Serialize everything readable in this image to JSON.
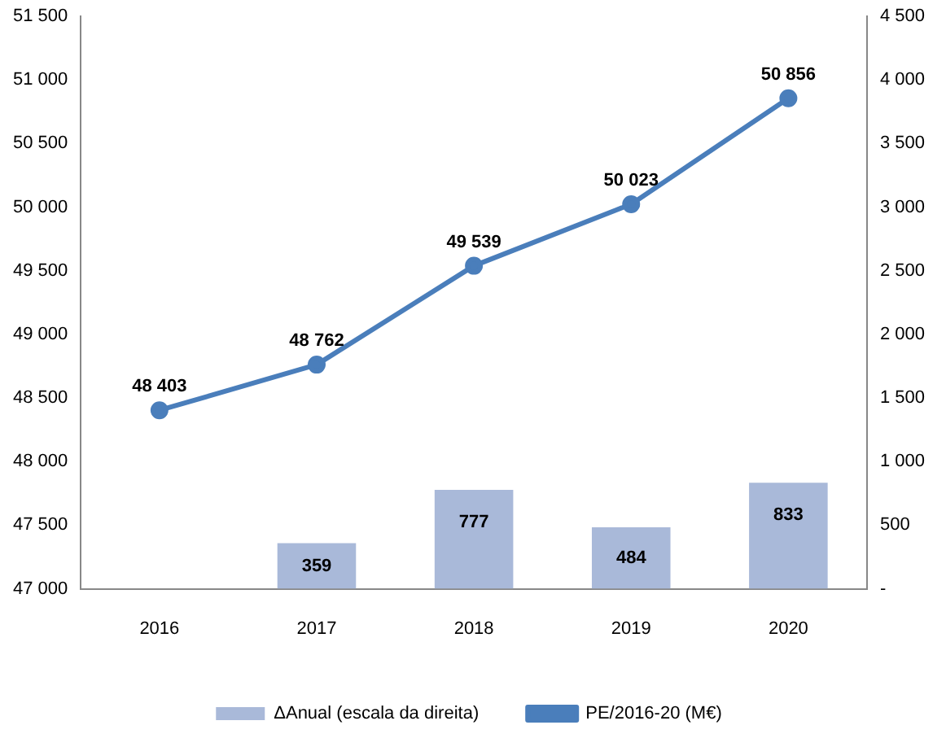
{
  "chart_data": {
    "type": "bar",
    "categories": [
      "2016",
      "2017",
      "2018",
      "2019",
      "2020"
    ],
    "series": [
      {
        "name": "ΔAnual (escala da direita)",
        "axis": "y2",
        "color": "#a9b9d9",
        "values": [
          null,
          359,
          777,
          484,
          833
        ]
      },
      {
        "name": "PE/2016-20 (M€)",
        "type": "line",
        "color": "#4a7ebb",
        "values": [
          48403,
          48762,
          49539,
          50023,
          50856
        ]
      }
    ],
    "ylim": [
      47000,
      51500
    ],
    "yticks": [
      {
        "value": 47000,
        "label": "47 000"
      },
      {
        "value": 47500,
        "label": "47 500"
      },
      {
        "value": 48000,
        "label": "48 000"
      },
      {
        "value": 48500,
        "label": "48 500"
      },
      {
        "value": 49000,
        "label": "49 000"
      },
      {
        "value": 49500,
        "label": "49 500"
      },
      {
        "value": 50000,
        "label": "50 000"
      },
      {
        "value": 50500,
        "label": "50 500"
      },
      {
        "value": 51000,
        "label": "51 000"
      },
      {
        "value": 51500,
        "label": "51 500"
      }
    ],
    "y2lim": [
      0,
      4500
    ],
    "y2ticks": [
      {
        "value": 0,
        "label": "-"
      },
      500,
      {
        "value": 1000,
        "label": "1 000"
      },
      {
        "value": 1500,
        "label": "1 500"
      },
      {
        "value": 2000,
        "label": "2 000"
      },
      {
        "value": 2500,
        "label": "2 500"
      },
      {
        "value": 3000,
        "label": "3 000"
      },
      {
        "value": 3500,
        "label": "3 500"
      },
      {
        "value": 4000,
        "label": "4 000"
      },
      {
        "value": 4500,
        "label": "4 500"
      }
    ],
    "data_labels": true,
    "marker": "circle",
    "grid": false,
    "legend": "bottom"
  }
}
